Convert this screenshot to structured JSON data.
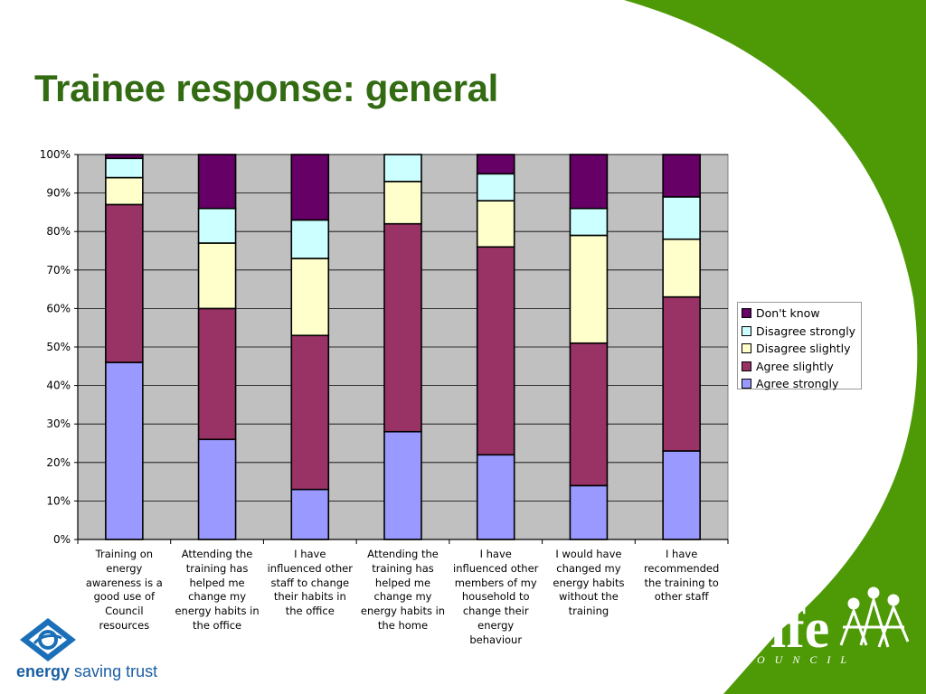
{
  "slide": {
    "title": "Trainee response: general",
    "accent_color": "#4e9a06",
    "title_color": "#336b13"
  },
  "logos": {
    "left_name": "energy",
    "left_suffix": "saving trust",
    "right_name": "Fife",
    "right_sub": "COUNCIL"
  },
  "chart_data": {
    "type": "bar",
    "stacked": true,
    "percent": true,
    "ylim": [
      0,
      100
    ],
    "yticks": [
      "0%",
      "10%",
      "20%",
      "30%",
      "40%",
      "50%",
      "60%",
      "70%",
      "80%",
      "90%",
      "100%"
    ],
    "grid": true,
    "legend_position": "right",
    "categories": [
      "Training on energy awareness is a good use of Council resources",
      "Attending the training has helped me change my energy habits in the office",
      "I have influenced other staff to change their habits in the office",
      "Attending the training has helped me change my energy habits in the home",
      "I have influenced other members of my household to change their energy behaviour",
      "I would have changed my energy habits without the training",
      "I have recommended the training to other staff"
    ],
    "category_lines": [
      [
        "Training on",
        "energy",
        "awareness is a",
        "good use of",
        "Council",
        "resources"
      ],
      [
        "Attending the",
        "training has",
        "helped me",
        "change my",
        "energy habits in",
        "the office"
      ],
      [
        "I have",
        "influenced other",
        "staff to change",
        "their habits in",
        "the office"
      ],
      [
        "Attending the",
        "training has",
        "helped me",
        "change my",
        "energy habits in",
        "the home"
      ],
      [
        "I have",
        "influenced other",
        "members of my",
        "household to",
        "change their",
        "energy",
        "behaviour"
      ],
      [
        "I would have",
        "changed my",
        "energy habits",
        "without the",
        "training"
      ],
      [
        "I have",
        "recommended",
        "the training to",
        "other staff"
      ]
    ],
    "series": [
      {
        "name": "Agree strongly",
        "color": "#9999ff",
        "values": [
          46,
          26,
          13,
          28,
          22,
          14,
          23
        ]
      },
      {
        "name": "Agree slightly",
        "color": "#993366",
        "values": [
          41,
          34,
          40,
          54,
          54,
          37,
          40
        ]
      },
      {
        "name": "Disagree slightly",
        "color": "#ffffcc",
        "values": [
          7,
          17,
          20,
          11,
          12,
          28,
          15
        ]
      },
      {
        "name": "Disagree strongly",
        "color": "#ccffff",
        "values": [
          5,
          9,
          10,
          7,
          7,
          7,
          11
        ]
      },
      {
        "name": "Don't know",
        "color": "#660066",
        "values": [
          1,
          14,
          17,
          0,
          5,
          14,
          11
        ]
      }
    ]
  }
}
